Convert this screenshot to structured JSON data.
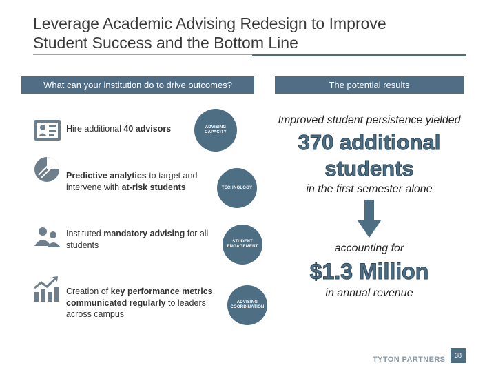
{
  "slide": {
    "title_line1": "Leverage Academic Advising Redesign to Improve",
    "title_line2": "Student Success and the Bottom Line"
  },
  "left_header": "What can your institution do to drive outcomes?",
  "right_header": "The potential results",
  "actions": [
    {
      "icon": "team-icon",
      "parts": [
        {
          "text": "Hire additional ",
          "bold": false
        },
        {
          "text": "40 advisors",
          "bold": true
        }
      ],
      "circle_line1": "ADVISING",
      "circle_line2": "CAPACITY"
    },
    {
      "icon": "pie-chart-icon",
      "parts": [
        {
          "text": "Predictive analytics",
          "bold": true
        },
        {
          "text": " to target and intervene with ",
          "bold": false
        },
        {
          "text": "at-risk students",
          "bold": true
        }
      ],
      "circle_line1": "TECHNOLOGY",
      "circle_line2": ""
    },
    {
      "icon": "people-icon",
      "parts": [
        {
          "text": "Instituted ",
          "bold": false
        },
        {
          "text": "mandatory advising",
          "bold": true
        },
        {
          "text": " for all students",
          "bold": false
        }
      ],
      "circle_line1": "STUDENT",
      "circle_line2": "ENGAGEMENT"
    },
    {
      "icon": "bar-growth-icon",
      "parts": [
        {
          "text": "Creation of ",
          "bold": false
        },
        {
          "text": "key performance metrics communicated regularly",
          "bold": true
        },
        {
          "text": " to leaders across campus",
          "bold": false
        }
      ],
      "circle_line1": "ADVISING",
      "circle_line2": "COORDINATION"
    }
  ],
  "results": {
    "line1": "Improved student persistence yielded",
    "big1_line1": "370 additional",
    "big1_line2": "students",
    "line2": "in the first semester alone",
    "line3": "accounting for",
    "big2": "$1.3 Million",
    "line4": "in annual revenue"
  },
  "footer": {
    "logo": "TYTON PARTNERS",
    "page": "38"
  },
  "colors": {
    "accent": "#4e6e84",
    "icon_gray": "#6e7e8a"
  }
}
